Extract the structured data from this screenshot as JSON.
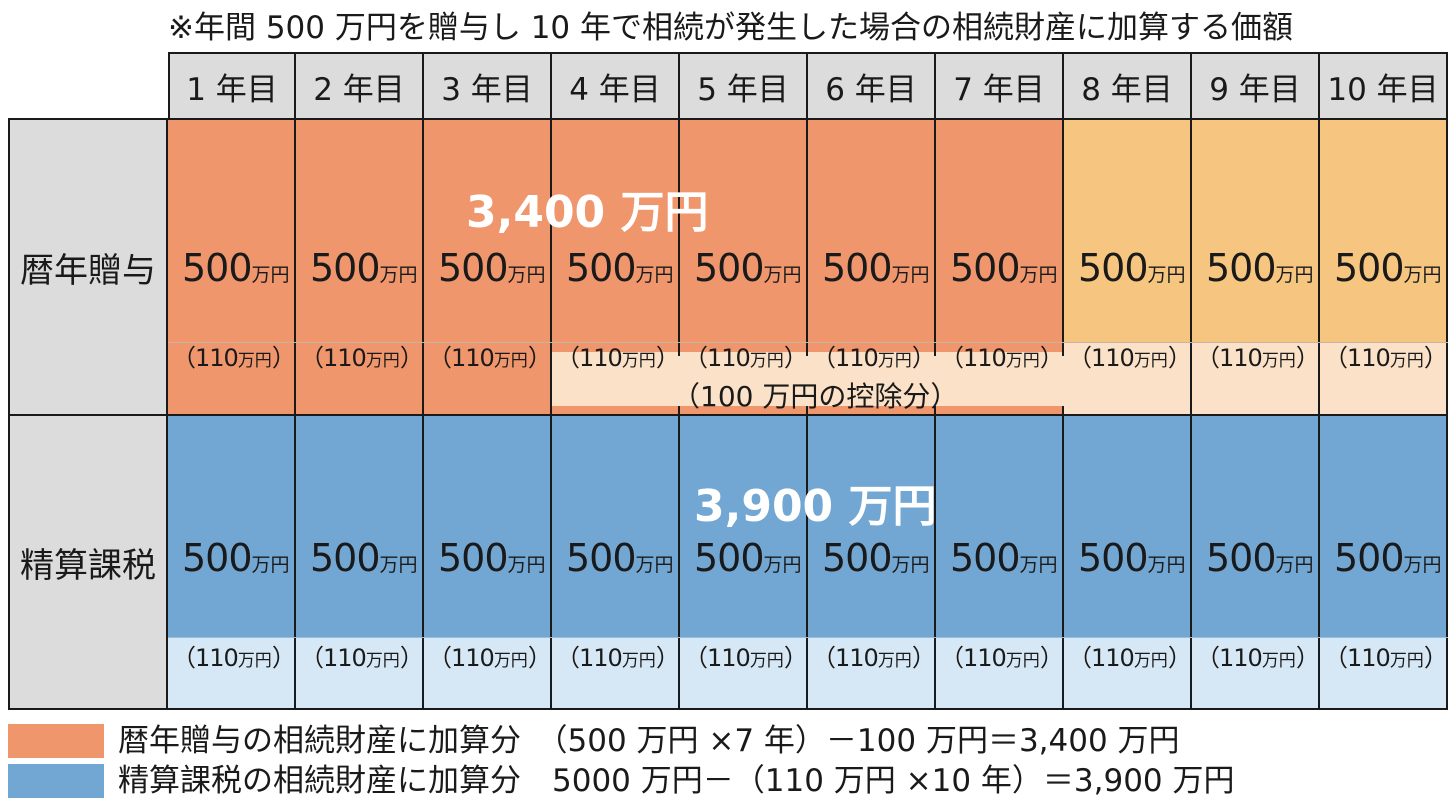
{
  "title": "※年間 500 万円を贈与し 10 年で相続が発生した場合の相続財産に加算する価額",
  "years": [
    "1 年目",
    "2 年目",
    "3 年目",
    "4 年目",
    "5 年目",
    "6 年目",
    "7 年目",
    "8 年目",
    "9 年目",
    "10 年目"
  ],
  "row_labels": {
    "reki": "暦年贈与",
    "seisan": "精算課税"
  },
  "cell_value": "500",
  "cell_unit": "万円",
  "paren_open": "（110",
  "paren_unit": "万円",
  "paren_close": "）",
  "totals": {
    "reki": "3,400 万円",
    "seisan": "3,900 万円"
  },
  "deduction_label": "（100 万円の控除分）",
  "legend": [
    {
      "text": "暦年贈与の相続財産に加算分　（500 万円 ×7 年）－100 万円＝3,400 万円",
      "color": "#f0966c"
    },
    {
      "text": "精算課税の相続財産に加算分　5000 万円－（110 万円 ×10 年）＝3,900 万円",
      "color": "#72a7d4"
    }
  ],
  "colors": {
    "orange": "#f0966c",
    "yellow": "#f6c680",
    "blue": "#72a7d4",
    "pale_orange": "#fbe1c8",
    "pale_blue": "#d6e8f6",
    "header_gray": "#dcdcdc"
  }
}
